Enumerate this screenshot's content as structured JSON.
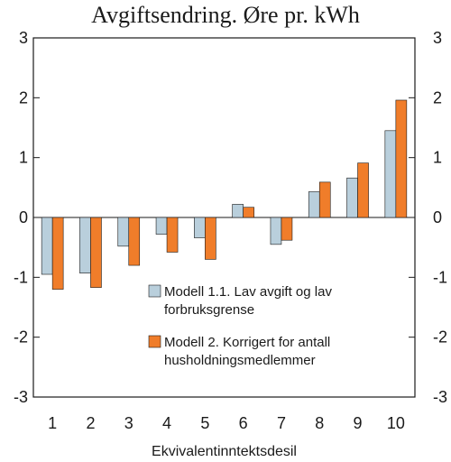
{
  "chart_data": {
    "type": "bar",
    "title": "Avgiftsendring. Øre pr. kWh",
    "xlabel": "Ekvivalentinntektsdesil",
    "ylabel": "",
    "categories": [
      "1",
      "2",
      "3",
      "4",
      "5",
      "6",
      "7",
      "8",
      "9",
      "10"
    ],
    "ylim": [
      -3,
      3
    ],
    "yticks": [
      "3",
      "2",
      "1",
      "0",
      "-1",
      "-2",
      "-3"
    ],
    "grid": false,
    "legend_position": "lower-right inside plot",
    "series": [
      {
        "name": "Modell 1.1. Lav avgift og lav forbruksgrense",
        "legend_lines": [
          "Modell 1.1. Lav avgift og lav",
          "forbruksgrense"
        ],
        "color": "#b9cfdc",
        "values": [
          -0.95,
          -0.93,
          -0.48,
          -0.28,
          -0.34,
          0.22,
          -0.45,
          0.43,
          0.66,
          1.45
        ]
      },
      {
        "name": "Modell 2. Korrigert for antall husholdningsmedlemmer",
        "legend_lines": [
          "Modell 2. Korrigert for antall",
          "husholdningsmedlemmer"
        ],
        "color": "#f07d2a",
        "values": [
          -1.2,
          -1.17,
          -0.8,
          -0.58,
          -0.7,
          0.17,
          -0.38,
          0.59,
          0.91,
          1.96
        ]
      }
    ]
  }
}
